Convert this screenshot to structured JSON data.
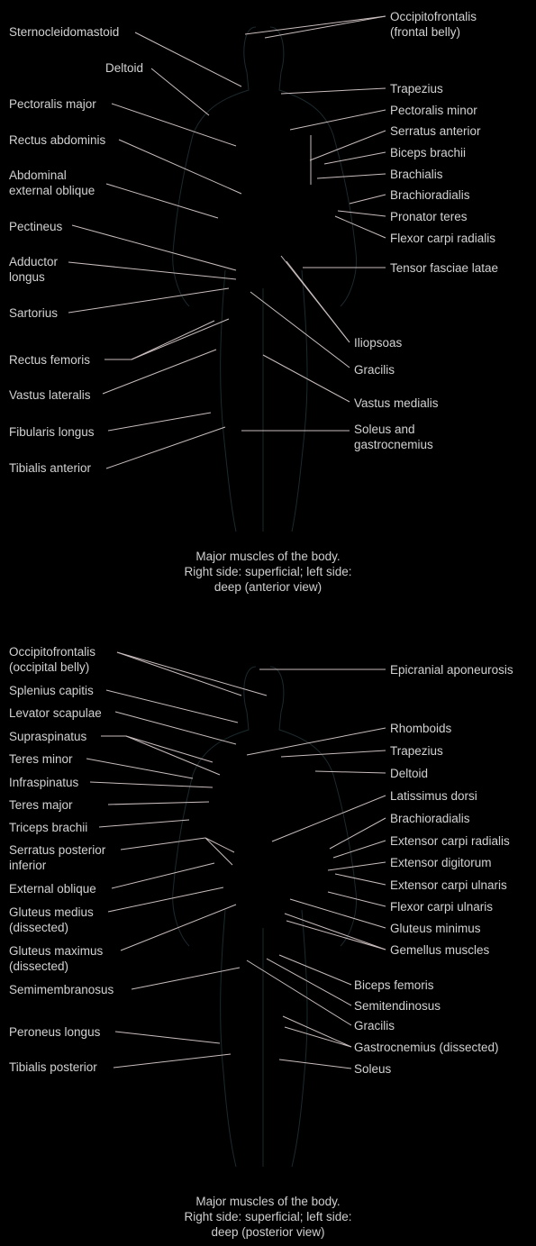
{
  "anterior": {
    "left_labels": [
      "Sternocleidomastoid",
      "Deltoid",
      "Pectoralis major",
      "Rectus abdominis",
      "Abdominal\nexternal oblique",
      "Pectineus",
      "Adductor\nlongus",
      "Sartorius",
      "Rectus femoris",
      "Vastus lateralis",
      "Fibularis longus",
      "Tibialis anterior"
    ],
    "right_labels": [
      "Occipitofrontalis\n(frontal belly)",
      "Trapezius",
      "Pectoralis minor",
      "Serratus anterior",
      "Biceps brachii",
      "Brachialis",
      "Brachioradialis",
      "Pronator teres",
      "Flexor carpi radialis",
      "Tensor fasciae latae",
      "Iliopsoas",
      "Gracilis",
      "Vastus medialis",
      "Soleus and\ngastrocnemius"
    ],
    "caption": "Major muscles of the body.\nRight side: superficial; left side:\ndeep (anterior view)"
  },
  "posterior": {
    "left_labels": [
      "Occipitofrontalis\n(occipital belly)",
      "Splenius capitis",
      "Levator scapulae",
      "Supraspinatus",
      "Teres minor",
      "Infraspinatus",
      "Teres major",
      "Triceps brachii",
      "Serratus posterior\ninferior",
      "External oblique",
      "Gluteus medius\n(dissected)",
      "Gluteus maximus\n(dissected)",
      "Semimembranosus",
      "Peroneus longus",
      "Tibialis posterior"
    ],
    "right_labels": [
      "Epicranial aponeurosis",
      "Rhomboids",
      "Trapezius",
      "Deltoid",
      "Latissimus dorsi",
      "Brachioradialis",
      "Extensor carpi radialis",
      "Extensor digitorum",
      "Extensor carpi ulnaris",
      "Flexor carpi ulnaris",
      "Gluteus minimus",
      "Gemellus muscles",
      "Biceps femoris",
      "Semitendinosus",
      "Gracilis",
      "Gastrocnemius (dissected)",
      "Soleus"
    ],
    "caption": "Major muscles of the body.\nRight side: superficial; left side:\ndeep (posterior view)"
  }
}
